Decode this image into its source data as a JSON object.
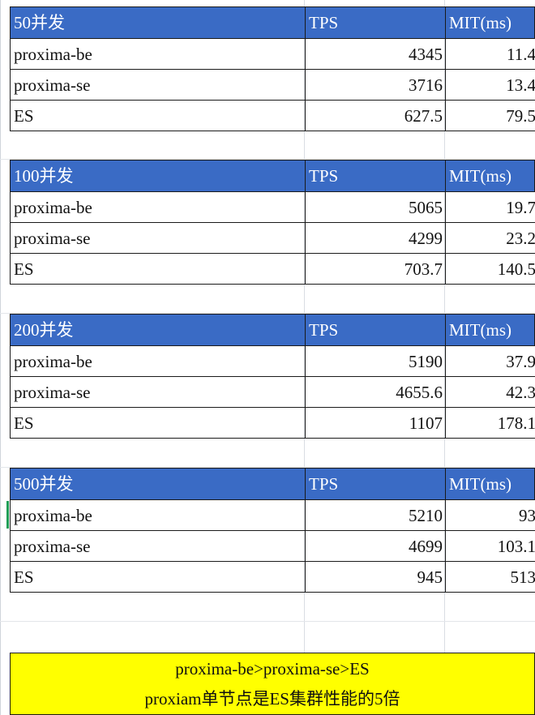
{
  "header": {
    "label_col2": "TPS",
    "label_col3": "MIT(ms)"
  },
  "tables": [
    {
      "title": "50并发",
      "rows": [
        {
          "name": "proxima-be",
          "tps": "4345",
          "mit": "11.4"
        },
        {
          "name": "proxima-se",
          "tps": "3716",
          "mit": "13.4"
        },
        {
          "name": "ES",
          "tps": "627.5",
          "mit": "79.5"
        }
      ]
    },
    {
      "title": "100并发",
      "rows": [
        {
          "name": "proxima-be",
          "tps": "5065",
          "mit": "19.7"
        },
        {
          "name": "proxima-se",
          "tps": "4299",
          "mit": "23.2"
        },
        {
          "name": "ES",
          "tps": "703.7",
          "mit": "140.5"
        }
      ]
    },
    {
      "title": "200并发",
      "rows": [
        {
          "name": "proxima-be",
          "tps": "5190",
          "mit": "37.9"
        },
        {
          "name": "proxima-se",
          "tps": "4655.6",
          "mit": "42.3"
        },
        {
          "name": "ES",
          "tps": "1107",
          "mit": "178.1"
        }
      ]
    },
    {
      "title": "500并发",
      "rows": [
        {
          "name": "proxima-be",
          "tps": "5210",
          "mit": "93"
        },
        {
          "name": "proxima-se",
          "tps": "4699",
          "mit": "103.1"
        },
        {
          "name": "ES",
          "tps": "945",
          "mit": "513"
        }
      ]
    }
  ],
  "summary": {
    "line1": "proxima-be>proxima-se>ES",
    "line2": "proxiam单节点是ES集群性能的5倍"
  },
  "colors": {
    "header_fill": "#3a6bc5",
    "summary_fill": "#ffff00"
  }
}
